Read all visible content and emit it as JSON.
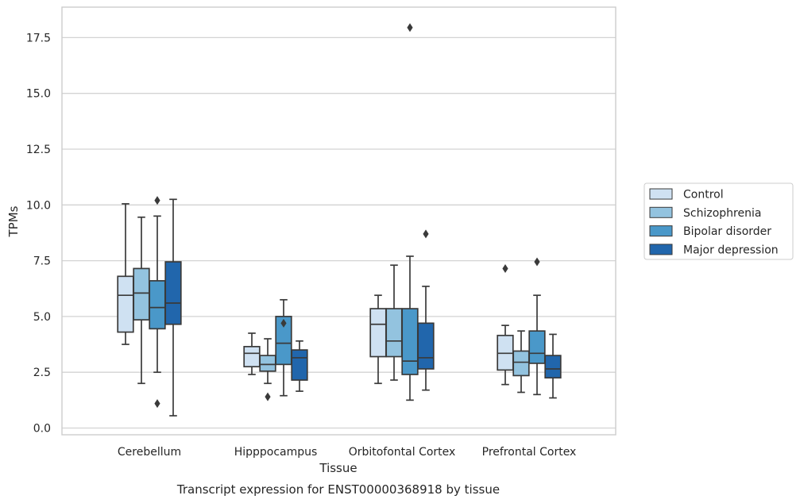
{
  "chart_data": {
    "type": "boxplot",
    "title": "",
    "subtitle": "",
    "caption": "Transcript expression for ENST00000368918 by tissue",
    "xlabel": "Tissue",
    "ylabel": "TPMs",
    "ylim": [
      -0.3,
      18.8
    ],
    "yticks": [
      0.0,
      2.5,
      5.0,
      7.5,
      10.0,
      12.5,
      15.0,
      17.5
    ],
    "ytick_labels": [
      "0.0",
      "2.5",
      "5.0",
      "7.5",
      "10.0",
      "12.5",
      "15.0",
      "17.5"
    ],
    "grid": "horizontal",
    "legend_position": "right, outside plot",
    "categories": [
      "Cerebellum",
      "Hipppocampus",
      "Orbitofontal Cortex",
      "Prefrontal Cortex"
    ],
    "series": [
      {
        "name": "Control",
        "color": "#cfe1f2",
        "boxes": [
          {
            "whislo": 3.75,
            "q1": 4.3,
            "med": 5.95,
            "q3": 6.8,
            "whishi": 10.05,
            "fliers": []
          },
          {
            "whislo": 2.4,
            "q1": 2.75,
            "med": 3.35,
            "q3": 3.65,
            "whishi": 4.25,
            "fliers": []
          },
          {
            "whislo": 2.0,
            "q1": 3.2,
            "med": 4.65,
            "q3": 5.35,
            "whishi": 5.95,
            "fliers": []
          },
          {
            "whislo": 1.95,
            "q1": 2.6,
            "med": 3.35,
            "q3": 4.15,
            "whishi": 4.6,
            "fliers": [
              7.15
            ]
          }
        ]
      },
      {
        "name": "Schizophrenia",
        "color": "#93c3df",
        "boxes": [
          {
            "whislo": 2.0,
            "q1": 4.85,
            "med": 6.05,
            "q3": 7.15,
            "whishi": 9.45,
            "fliers": []
          },
          {
            "whislo": 2.0,
            "q1": 2.55,
            "med": 2.85,
            "q3": 3.25,
            "whishi": 4.0,
            "fliers": [
              1.4
            ]
          },
          {
            "whislo": 2.15,
            "q1": 3.2,
            "med": 3.9,
            "q3": 5.35,
            "whishi": 7.3,
            "fliers": []
          },
          {
            "whislo": 1.6,
            "q1": 2.35,
            "med": 2.95,
            "q3": 3.45,
            "whishi": 4.35,
            "fliers": []
          }
        ]
      },
      {
        "name": "Bipolar disorder",
        "color": "#4a98c9",
        "boxes": [
          {
            "whislo": 2.5,
            "q1": 4.45,
            "med": 5.4,
            "q3": 6.6,
            "whishi": 9.5,
            "fliers": [
              10.2,
              1.1
            ]
          },
          {
            "whislo": 1.45,
            "q1": 2.85,
            "med": 3.8,
            "q3": 5.0,
            "whishi": 5.75,
            "fliers": [
              4.7
            ]
          },
          {
            "whislo": 1.25,
            "q1": 2.4,
            "med": 3.0,
            "q3": 5.35,
            "whishi": 7.7,
            "fliers": [
              17.95
            ]
          },
          {
            "whislo": 1.5,
            "q1": 2.9,
            "med": 3.35,
            "q3": 4.35,
            "whishi": 5.95,
            "fliers": [
              7.45
            ]
          }
        ]
      },
      {
        "name": "Major depression",
        "color": "#2166ac",
        "boxes": [
          {
            "whislo": 0.55,
            "q1": 4.65,
            "med": 5.6,
            "q3": 7.45,
            "whishi": 10.25,
            "fliers": []
          },
          {
            "whislo": 1.65,
            "q1": 2.15,
            "med": 3.15,
            "q3": 3.5,
            "whishi": 3.9,
            "fliers": []
          },
          {
            "whislo": 1.7,
            "q1": 2.65,
            "med": 3.15,
            "q3": 4.7,
            "whishi": 6.35,
            "fliers": [
              8.7
            ]
          },
          {
            "whislo": 1.35,
            "q1": 2.25,
            "med": 2.65,
            "q3": 3.25,
            "whishi": 4.2,
            "fliers": []
          }
        ]
      }
    ],
    "colors": {
      "axis": "#cccccc",
      "grid": "#d3d3d3",
      "box_edge": "#3a3a3a",
      "text": "#262626"
    }
  }
}
